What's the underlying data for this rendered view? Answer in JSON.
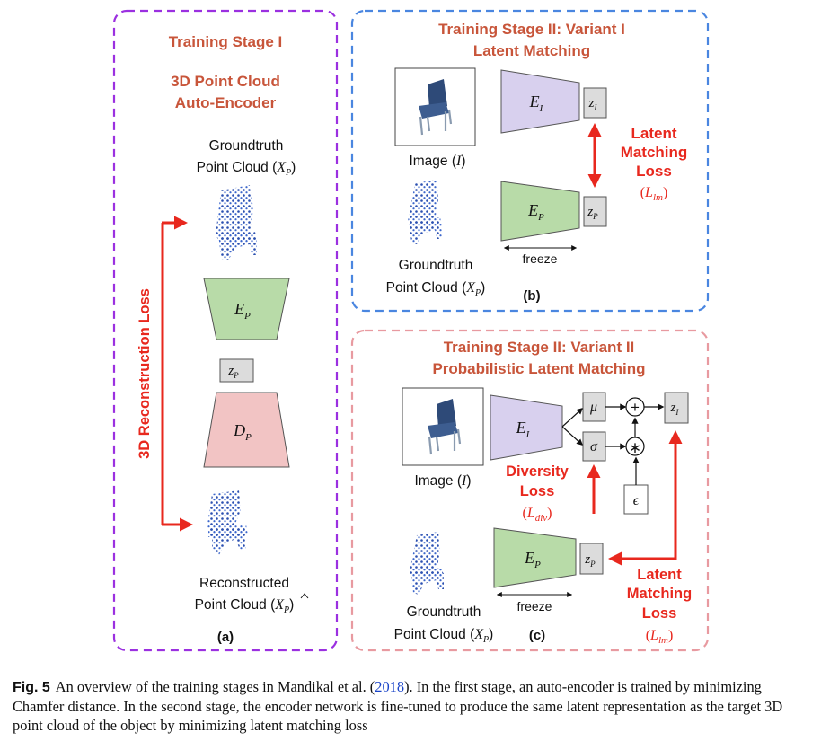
{
  "panel_a": {
    "title_line1": "Training Stage I",
    "title_line2": "3D Point Cloud",
    "title_line3": "Auto-Encoder",
    "gt_label_line1": "Groundtruth",
    "gt_label_line2_text": "Point Cloud (",
    "gt_symbol": "X",
    "gt_sub": "P",
    "close_paren": ")",
    "encoder_symbol": "E",
    "encoder_sub": "P",
    "latent_symbol": "z",
    "latent_sub": "P",
    "decoder_symbol": "D",
    "decoder_sub": "P",
    "loss_label": "3D Reconstruction Loss",
    "recon_label_line1": "Reconstructed",
    "recon_label_line2_text": "Point Cloud (",
    "recon_symbol": "X",
    "recon_sub": "P",
    "tag": "(a)"
  },
  "panel_b": {
    "title_line1": "Training Stage II: Variant I",
    "title_line2": "Latent Matching",
    "image_label_text": "Image (",
    "image_symbol": "I",
    "close_paren": ")",
    "encoder_i_symbol": "E",
    "encoder_i_sub": "I",
    "latent_i_symbol": "z",
    "latent_i_sub": "I",
    "encoder_p_symbol": "E",
    "encoder_p_sub": "P",
    "latent_p_symbol": "z",
    "latent_p_sub": "P",
    "loss_line1": "Latent",
    "loss_line2": "Matching",
    "loss_line3": "Loss",
    "loss_symbol": "L",
    "loss_sub": "lm",
    "freeze_label": "freeze",
    "gt_label_line1": "Groundtruth",
    "gt_label_line2_text": "Point Cloud (",
    "gt_symbol": "X",
    "gt_sub": "P",
    "tag": "(b)"
  },
  "panel_c": {
    "title_line1": "Training Stage II: Variant II",
    "title_line2": "Probabilistic Latent Matching",
    "image_label_text": "Image (",
    "image_symbol": "I",
    "close_paren": ")",
    "encoder_i_symbol": "E",
    "encoder_i_sub": "I",
    "mu_symbol": "μ",
    "sigma_symbol": "σ",
    "plus_symbol": "+",
    "times_symbol": "∗",
    "epsilon_symbol": "ϵ",
    "latent_i_symbol": "z",
    "latent_i_sub": "I",
    "diversity_line1": "Diversity",
    "diversity_line2": "Loss",
    "diversity_symbol": "L",
    "diversity_sub": "div",
    "encoder_p_symbol": "E",
    "encoder_p_sub": "P",
    "latent_p_symbol": "z",
    "latent_p_sub": "P",
    "freeze_label": "freeze",
    "loss_line1": "Latent",
    "loss_line2": "Matching",
    "loss_line3": "Loss",
    "loss_symbol": "L",
    "loss_sub": "lm",
    "gt_label_line1": "Groundtruth",
    "gt_label_line2_text": "Point Cloud (",
    "gt_symbol": "X",
    "gt_sub": "P",
    "tag": "(c)"
  },
  "caption": {
    "label": "Fig. 5",
    "text_before_cite": "An overview of the training stages in Mandikal et al. (",
    "cite_year": "2018",
    "text_after_cite": "). In the first stage, an auto-encoder is trained by minimizing Chamfer distance. In the second stage, the encoder network is fine-tuned to produce the same latent representation as the target 3D point cloud of the object by minimizing latent matching loss"
  },
  "colors": {
    "panel_a_border": "#9b30e0",
    "panel_b_border": "#4a86e0",
    "panel_c_border": "#e89aa0",
    "title_text": "#c8553a",
    "loss_red": "#e8281e",
    "encoder_i_fill": "#d8d0ee",
    "encoder_p_fill": "#b8dba8",
    "decoder_fill": "#f2c4c4",
    "latent_fill": "#dcdcdc",
    "pointcloud_blue": "#2a4fb0",
    "chair_image_blue": "#2e4a78"
  }
}
